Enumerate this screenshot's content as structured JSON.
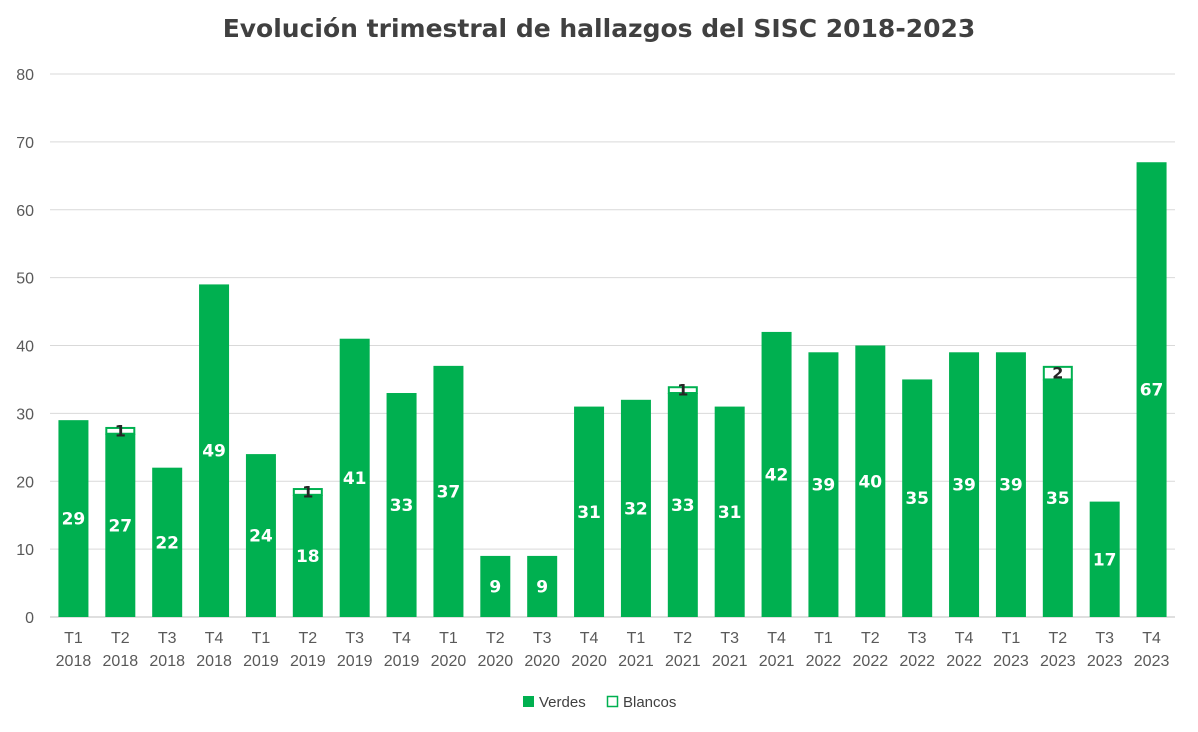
{
  "chart_data": {
    "type": "bar",
    "title": "Evolución trimestral de hallazgos del SISC 2018-2023",
    "xlabel": "",
    "ylabel": "",
    "ylim": [
      0,
      80
    ],
    "yticks": [
      0,
      10,
      20,
      30,
      40,
      50,
      60,
      70,
      80
    ],
    "grid": true,
    "stacked": true,
    "legend_position": "bottom",
    "categories": [
      [
        "T1",
        "2018"
      ],
      [
        "T2",
        "2018"
      ],
      [
        "T3",
        "2018"
      ],
      [
        "T4",
        "2018"
      ],
      [
        "T1",
        "2019"
      ],
      [
        "T2",
        "2019"
      ],
      [
        "T3",
        "2019"
      ],
      [
        "T4",
        "2019"
      ],
      [
        "T1",
        "2020"
      ],
      [
        "T2",
        "2020"
      ],
      [
        "T3",
        "2020"
      ],
      [
        "T4",
        "2020"
      ],
      [
        "T1",
        "2021"
      ],
      [
        "T2",
        "2021"
      ],
      [
        "T3",
        "2021"
      ],
      [
        "T4",
        "2021"
      ],
      [
        "T1",
        "2022"
      ],
      [
        "T2",
        "2022"
      ],
      [
        "T3",
        "2022"
      ],
      [
        "T4",
        "2022"
      ],
      [
        "T1",
        "2023"
      ],
      [
        "T2",
        "2023"
      ],
      [
        "T3",
        "2023"
      ],
      [
        "T4",
        "2023"
      ]
    ],
    "series": [
      {
        "name": "Verdes",
        "color": "#00b050",
        "values": [
          29,
          27,
          22,
          49,
          24,
          18,
          41,
          33,
          37,
          9,
          9,
          31,
          32,
          33,
          31,
          42,
          39,
          40,
          35,
          39,
          39,
          35,
          17,
          67
        ]
      },
      {
        "name": "Blancos",
        "color": "#ffffff",
        "border_color": "#00b050",
        "values": [
          0,
          1,
          0,
          0,
          0,
          1,
          0,
          0,
          0,
          0,
          0,
          0,
          0,
          1,
          0,
          0,
          0,
          0,
          0,
          0,
          0,
          2,
          0,
          0
        ]
      }
    ]
  }
}
